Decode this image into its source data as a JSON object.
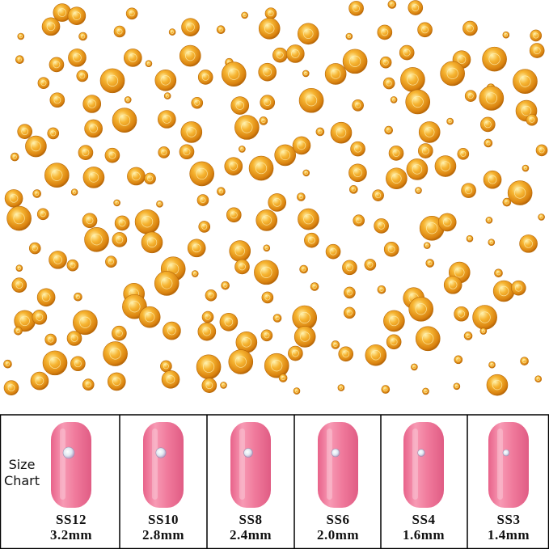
{
  "size_chart": {
    "label": "Size Chart",
    "items": [
      {
        "code": "SS12",
        "size": "3.2mm"
      },
      {
        "code": "SS10",
        "size": "2.8mm"
      },
      {
        "code": "SS8",
        "size": "2.4mm"
      },
      {
        "code": "SS6",
        "size": "2.0mm"
      },
      {
        "code": "SS4",
        "size": "1.6mm"
      },
      {
        "code": "SS3",
        "size": "1.4mm"
      }
    ]
  }
}
